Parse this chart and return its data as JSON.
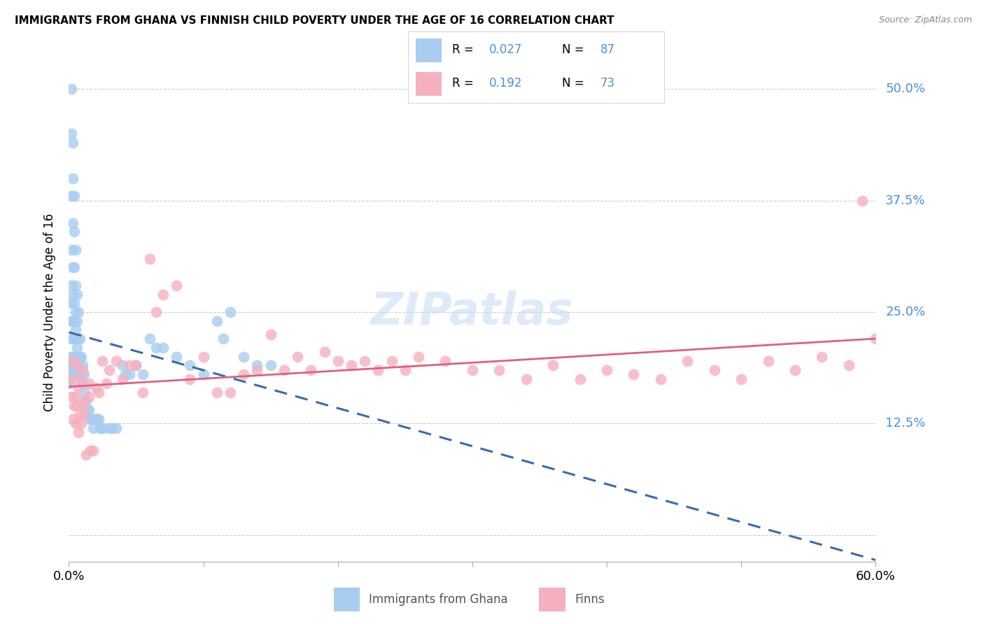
{
  "title": "IMMIGRANTS FROM GHANA VS FINNISH CHILD POVERTY UNDER THE AGE OF 16 CORRELATION CHART",
  "source": "Source: ZipAtlas.com",
  "ylabel": "Child Poverty Under the Age of 16",
  "x_min": 0.0,
  "x_max": 0.6,
  "y_min": -0.03,
  "y_max": 0.53,
  "grid_color": "#cccccc",
  "background_color": "#ffffff",
  "blue_color": "#a8cdf0",
  "blue_line_color": "#3a6aaa",
  "pink_color": "#f5b0c0",
  "pink_line_color": "#e06080",
  "legend_text_color": "#4a90d9",
  "watermark": "ZIPatlas",
  "blue_x": [
    0.001,
    0.001,
    0.001,
    0.001,
    0.001,
    0.002,
    0.002,
    0.002,
    0.002,
    0.002,
    0.002,
    0.002,
    0.002,
    0.002,
    0.002,
    0.003,
    0.003,
    0.003,
    0.003,
    0.003,
    0.003,
    0.003,
    0.003,
    0.003,
    0.004,
    0.004,
    0.004,
    0.004,
    0.004,
    0.004,
    0.004,
    0.004,
    0.005,
    0.005,
    0.005,
    0.005,
    0.005,
    0.005,
    0.006,
    0.006,
    0.006,
    0.006,
    0.006,
    0.007,
    0.007,
    0.007,
    0.008,
    0.008,
    0.008,
    0.009,
    0.009,
    0.01,
    0.01,
    0.011,
    0.012,
    0.013,
    0.014,
    0.015,
    0.016,
    0.017,
    0.018,
    0.02,
    0.021,
    0.022,
    0.023,
    0.024,
    0.025,
    0.03,
    0.032,
    0.035,
    0.04,
    0.042,
    0.045,
    0.05,
    0.055,
    0.06,
    0.065,
    0.07,
    0.08,
    0.09,
    0.1,
    0.11,
    0.115,
    0.12,
    0.13,
    0.14,
    0.15
  ],
  "blue_y": [
    0.19,
    0.185,
    0.18,
    0.175,
    0.17,
    0.5,
    0.45,
    0.38,
    0.32,
    0.28,
    0.26,
    0.24,
    0.22,
    0.2,
    0.18,
    0.44,
    0.4,
    0.35,
    0.3,
    0.27,
    0.24,
    0.22,
    0.2,
    0.19,
    0.38,
    0.34,
    0.3,
    0.26,
    0.24,
    0.22,
    0.2,
    0.19,
    0.32,
    0.28,
    0.25,
    0.23,
    0.2,
    0.19,
    0.27,
    0.24,
    0.21,
    0.19,
    0.18,
    0.25,
    0.22,
    0.19,
    0.22,
    0.2,
    0.18,
    0.2,
    0.18,
    0.19,
    0.17,
    0.18,
    0.16,
    0.15,
    0.14,
    0.14,
    0.13,
    0.13,
    0.12,
    0.13,
    0.13,
    0.13,
    0.12,
    0.12,
    0.12,
    0.12,
    0.12,
    0.12,
    0.19,
    0.18,
    0.18,
    0.19,
    0.18,
    0.22,
    0.21,
    0.21,
    0.2,
    0.19,
    0.18,
    0.24,
    0.22,
    0.25,
    0.2,
    0.19,
    0.19
  ],
  "pink_x": [
    0.001,
    0.002,
    0.003,
    0.004,
    0.005,
    0.005,
    0.006,
    0.007,
    0.007,
    0.008,
    0.009,
    0.01,
    0.011,
    0.012,
    0.013,
    0.015,
    0.016,
    0.018,
    0.02,
    0.022,
    0.025,
    0.028,
    0.03,
    0.035,
    0.04,
    0.045,
    0.05,
    0.055,
    0.06,
    0.065,
    0.07,
    0.08,
    0.09,
    0.1,
    0.11,
    0.12,
    0.13,
    0.14,
    0.15,
    0.16,
    0.17,
    0.18,
    0.19,
    0.2,
    0.21,
    0.22,
    0.23,
    0.24,
    0.25,
    0.26,
    0.28,
    0.3,
    0.32,
    0.34,
    0.36,
    0.38,
    0.4,
    0.42,
    0.44,
    0.46,
    0.48,
    0.5,
    0.52,
    0.54,
    0.56,
    0.58,
    0.59,
    0.6,
    0.003,
    0.006,
    0.008,
    0.01,
    0.015
  ],
  "pink_y": [
    0.175,
    0.155,
    0.13,
    0.145,
    0.155,
    0.125,
    0.145,
    0.165,
    0.115,
    0.135,
    0.125,
    0.145,
    0.135,
    0.15,
    0.09,
    0.155,
    0.095,
    0.095,
    0.165,
    0.16,
    0.195,
    0.17,
    0.185,
    0.195,
    0.175,
    0.19,
    0.19,
    0.16,
    0.31,
    0.25,
    0.27,
    0.28,
    0.175,
    0.2,
    0.16,
    0.16,
    0.18,
    0.185,
    0.225,
    0.185,
    0.2,
    0.185,
    0.205,
    0.195,
    0.19,
    0.195,
    0.185,
    0.195,
    0.185,
    0.2,
    0.195,
    0.185,
    0.185,
    0.175,
    0.19,
    0.175,
    0.185,
    0.18,
    0.175,
    0.195,
    0.185,
    0.175,
    0.195,
    0.185,
    0.2,
    0.19,
    0.375,
    0.22,
    0.195,
    0.19,
    0.175,
    0.185,
    0.17
  ]
}
